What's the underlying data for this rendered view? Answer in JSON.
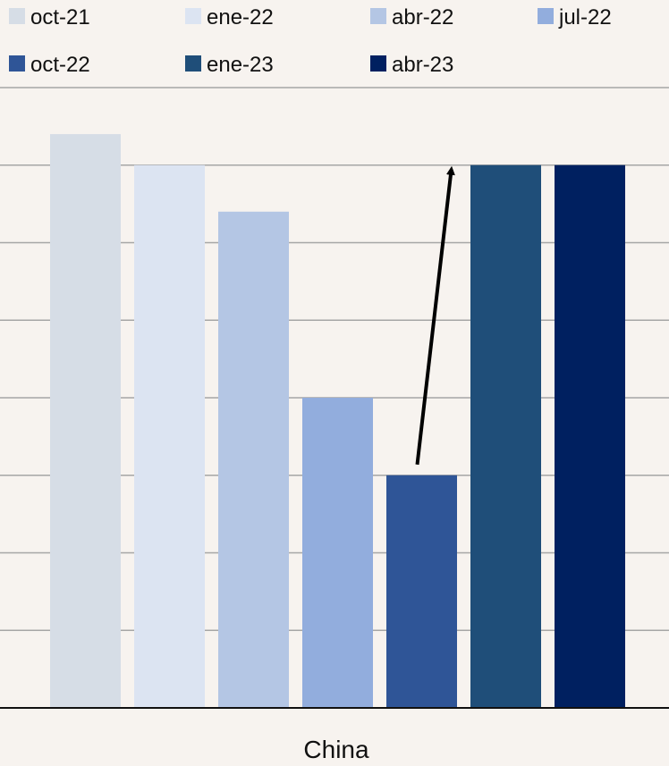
{
  "chart_data": {
    "type": "bar",
    "categories": [
      "China"
    ],
    "series": [
      {
        "name": "oct-21",
        "values": [
          7.4
        ],
        "color": "#d6dde6"
      },
      {
        "name": "ene-22",
        "values": [
          7.0
        ],
        "color": "#dce4f2"
      },
      {
        "name": "abr-22",
        "values": [
          6.4
        ],
        "color": "#b4c6e4"
      },
      {
        "name": "jul-22",
        "values": [
          4.0
        ],
        "color": "#92addd"
      },
      {
        "name": "oct-22",
        "values": [
          3.0
        ],
        "color": "#2f5597"
      },
      {
        "name": "ene-23",
        "values": [
          7.0
        ],
        "color": "#1f4e79"
      },
      {
        "name": "abr-23",
        "values": [
          7.0
        ],
        "color": "#002060"
      }
    ],
    "ylim": [
      0,
      8
    ],
    "grid": true,
    "legend_position": "top",
    "annotation": {
      "type": "arrow",
      "from_series": "oct-22",
      "from_value": 3.0,
      "to_series": "ene-23",
      "to_value": 7.0,
      "color": "#000000"
    },
    "background_color": "#f7f3ef",
    "gridline_color": "#a6a6a6"
  }
}
